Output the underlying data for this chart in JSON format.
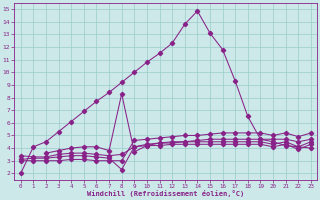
{
  "bg_color": "#cce8e8",
  "line_color": "#882288",
  "grid_color": "#99cccc",
  "xlabel": "Windchill (Refroidissement éolien,°C)",
  "ylabel_ticks": [
    2,
    3,
    4,
    5,
    6,
    7,
    8,
    9,
    10,
    11,
    12,
    13,
    14,
    15
  ],
  "xlim": [
    -0.5,
    23.5
  ],
  "ylim": [
    1.5,
    15.5
  ],
  "line1_x": [
    0,
    1,
    2,
    3,
    4,
    5,
    6,
    7,
    8,
    9,
    10,
    11,
    12,
    13,
    14,
    15,
    16,
    17,
    18,
    19,
    20,
    21,
    22,
    23
  ],
  "line1_y": [
    2.0,
    4.1,
    4.5,
    5.3,
    6.1,
    6.9,
    7.7,
    8.4,
    9.2,
    10.0,
    10.8,
    11.5,
    12.3,
    13.8,
    14.85,
    13.1,
    11.8,
    9.3,
    6.5,
    4.7,
    4.5,
    4.2,
    4.1,
    4.0
  ],
  "line2_x": [
    0,
    1,
    2,
    3,
    4,
    5,
    6,
    7,
    8,
    9,
    10,
    11,
    12,
    13,
    14,
    15,
    16,
    17,
    18,
    19,
    20,
    21,
    22,
    23
  ],
  "line2_y": [
    3.1,
    3.2,
    3.2,
    3.3,
    3.4,
    3.4,
    3.3,
    3.2,
    2.3,
    4.1,
    4.2,
    4.2,
    4.3,
    4.3,
    4.3,
    4.3,
    4.3,
    4.3,
    4.3,
    4.3,
    4.1,
    4.3,
    3.9,
    4.3
  ],
  "line3_x": [
    0,
    1,
    2,
    3,
    4,
    5,
    6,
    7,
    8,
    9,
    10,
    11,
    12,
    13,
    14,
    15,
    16,
    17,
    18,
    19,
    20,
    21,
    22,
    23
  ],
  "line3_y": [
    3.4,
    3.3,
    3.3,
    3.5,
    3.6,
    3.6,
    3.5,
    3.4,
    3.5,
    4.1,
    4.3,
    4.4,
    4.4,
    4.5,
    4.5,
    4.5,
    4.5,
    4.5,
    4.5,
    4.5,
    4.3,
    4.5,
    4.1,
    4.5
  ],
  "line4_x": [
    2,
    3,
    4,
    5,
    6,
    7,
    8,
    9,
    10,
    11,
    12,
    13,
    14,
    15,
    16,
    17,
    18,
    19,
    20,
    21,
    22,
    23
  ],
  "line4_y": [
    3.6,
    3.8,
    4.0,
    4.1,
    4.1,
    3.8,
    8.3,
    3.7,
    4.2,
    4.4,
    4.5,
    4.5,
    4.6,
    4.7,
    4.7,
    4.7,
    4.7,
    4.7,
    4.7,
    4.7,
    4.5,
    4.7
  ],
  "line5_x": [
    0,
    1,
    2,
    3,
    4,
    5,
    6,
    7,
    8,
    9,
    10,
    11,
    12,
    13,
    14,
    15,
    16,
    17,
    18,
    19,
    20,
    21,
    22,
    23
  ],
  "line5_y": [
    3.0,
    3.0,
    3.0,
    3.0,
    3.1,
    3.1,
    3.0,
    3.0,
    3.0,
    4.6,
    4.7,
    4.8,
    4.9,
    5.0,
    5.0,
    5.1,
    5.2,
    5.2,
    5.2,
    5.2,
    5.0,
    5.2,
    4.9,
    5.2
  ]
}
